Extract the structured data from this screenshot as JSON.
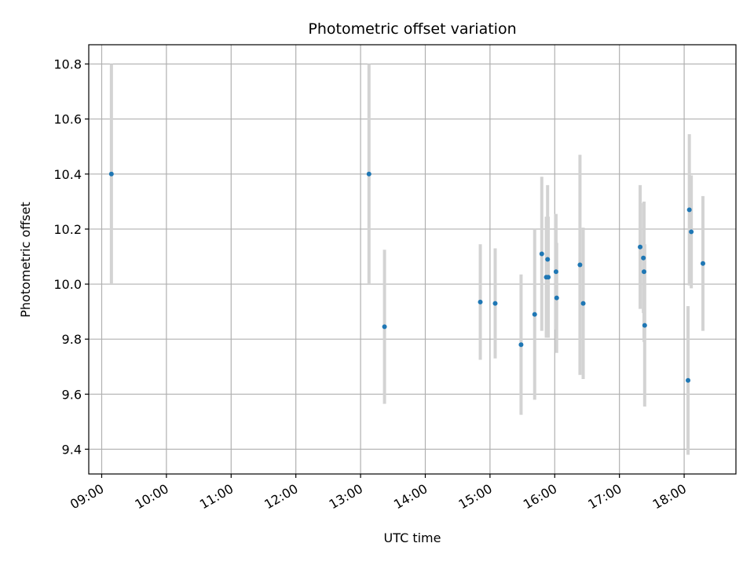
{
  "chart_data": {
    "type": "scatter",
    "title": "Photometric offset variation",
    "xlabel": "UTC time",
    "ylabel": "Photometric offset",
    "x_unit": "hours UTC",
    "xlim": [
      8.8,
      18.8
    ],
    "ylim": [
      9.31,
      10.87
    ],
    "x_ticks": [
      9,
      10,
      11,
      12,
      13,
      14,
      15,
      16,
      17,
      18
    ],
    "x_tick_labels": [
      "09:00",
      "10:00",
      "11:00",
      "12:00",
      "13:00",
      "14:00",
      "15:00",
      "16:00",
      "17:00",
      "18:00"
    ],
    "y_ticks": [
      9.4,
      9.6,
      9.8,
      10.0,
      10.2,
      10.4,
      10.6,
      10.8
    ],
    "y_tick_labels": [
      "9.4",
      "9.6",
      "9.8",
      "10.0",
      "10.2",
      "10.4",
      "10.6",
      "10.8"
    ],
    "grid": true,
    "colors": {
      "marker": "#1f77b4",
      "errorbar": "#d3d3d3",
      "grid": "#b0b0b0"
    },
    "series": [
      {
        "points": [
          {
            "time": "09:09",
            "x": 9.15,
            "y": 10.4,
            "yerr": 0.4
          },
          {
            "time": "13:08",
            "x": 13.13,
            "y": 10.4,
            "yerr": 0.4
          },
          {
            "time": "13:22",
            "x": 13.37,
            "y": 9.845,
            "yerr": 0.28
          },
          {
            "time": "14:51",
            "x": 14.85,
            "y": 9.935,
            "yerr": 0.21
          },
          {
            "time": "15:05",
            "x": 15.08,
            "y": 9.93,
            "yerr": 0.2
          },
          {
            "time": "15:29",
            "x": 15.48,
            "y": 9.78,
            "yerr": 0.255
          },
          {
            "time": "15:41",
            "x": 15.69,
            "y": 9.89,
            "yerr": 0.31
          },
          {
            "time": "15:48",
            "x": 15.8,
            "y": 10.11,
            "yerr": 0.28
          },
          {
            "time": "15:52",
            "x": 15.87,
            "y": 10.025,
            "yerr": 0.22
          },
          {
            "time": "15:53",
            "x": 15.89,
            "y": 10.09,
            "yerr": 0.27
          },
          {
            "time": "15:54",
            "x": 15.9,
            "y": 10.025,
            "yerr": 0.22
          },
          {
            "time": "16:01",
            "x": 16.02,
            "y": 10.045,
            "yerr": 0.21
          },
          {
            "time": "16:02",
            "x": 16.03,
            "y": 9.95,
            "yerr": 0.2
          },
          {
            "time": "16:23",
            "x": 16.39,
            "y": 10.07,
            "yerr": 0.4
          },
          {
            "time": "16:26",
            "x": 16.44,
            "y": 9.93,
            "yerr": 0.275
          },
          {
            "time": "17:19",
            "x": 17.32,
            "y": 10.135,
            "yerr": 0.225
          },
          {
            "time": "17:22",
            "x": 17.37,
            "y": 10.095,
            "yerr": 0.2
          },
          {
            "time": "17:23",
            "x": 17.38,
            "y": 10.045,
            "yerr": 0.255
          },
          {
            "time": "17:23",
            "x": 17.39,
            "y": 9.85,
            "yerr": 0.295
          },
          {
            "time": "18:03",
            "x": 18.06,
            "y": 9.65,
            "yerr": 0.27
          },
          {
            "time": "18:05",
            "x": 18.08,
            "y": 10.27,
            "yerr": 0.275
          },
          {
            "time": "18:07",
            "x": 18.11,
            "y": 10.19,
            "yerr": 0.205
          },
          {
            "time": "18:17",
            "x": 18.29,
            "y": 10.075,
            "yerr": 0.245
          }
        ]
      }
    ]
  }
}
